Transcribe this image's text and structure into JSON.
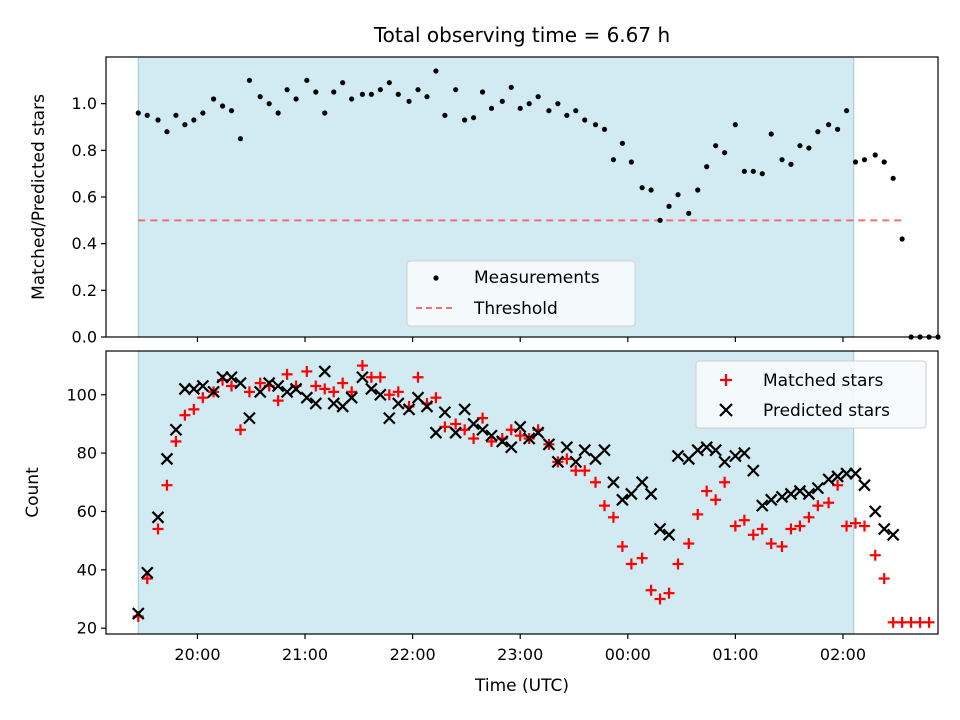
{
  "chart_data": [
    {
      "type": "scatter",
      "title": "Total observing time = 6.67 h",
      "xlabel": "",
      "ylabel": "Matched/Predicted stars",
      "ylim": [
        0,
        1.2
      ],
      "yticks": [
        "0.0",
        "0.2",
        "0.4",
        "0.6",
        "0.8",
        "1.0"
      ],
      "shade_range": [
        "19:27",
        "02:06"
      ],
      "legend_position": "lower-center",
      "series": [
        {
          "name": "Measurements",
          "marker": "dot",
          "color": "#000000",
          "points": [
            [
              "19:27",
              0.96
            ],
            [
              "19:32",
              0.95
            ],
            [
              "19:38",
              0.93
            ],
            [
              "19:43",
              0.88
            ],
            [
              "19:48",
              0.95
            ],
            [
              "19:53",
              0.91
            ],
            [
              "19:58",
              0.93
            ],
            [
              "20:03",
              0.96
            ],
            [
              "20:09",
              1.02
            ],
            [
              "20:14",
              0.99
            ],
            [
              "20:19",
              0.97
            ],
            [
              "20:24",
              0.85
            ],
            [
              "20:29",
              1.1
            ],
            [
              "20:35",
              1.03
            ],
            [
              "20:40",
              1.0
            ],
            [
              "20:45",
              0.96
            ],
            [
              "20:50",
              1.06
            ],
            [
              "20:55",
              1.02
            ],
            [
              "21:01",
              1.1
            ],
            [
              "21:06",
              1.05
            ],
            [
              "21:11",
              0.96
            ],
            [
              "21:16",
              1.05
            ],
            [
              "21:21",
              1.09
            ],
            [
              "21:26",
              1.02
            ],
            [
              "21:32",
              1.04
            ],
            [
              "21:37",
              1.04
            ],
            [
              "21:42",
              1.06
            ],
            [
              "21:47",
              1.09
            ],
            [
              "21:52",
              1.04
            ],
            [
              "21:58",
              1.01
            ],
            [
              "22:03",
              1.06
            ],
            [
              "22:08",
              1.03
            ],
            [
              "22:13",
              1.14
            ],
            [
              "22:18",
              0.95
            ],
            [
              "22:24",
              1.06
            ],
            [
              "22:29",
              0.93
            ],
            [
              "22:34",
              0.94
            ],
            [
              "22:39",
              1.05
            ],
            [
              "22:44",
              0.98
            ],
            [
              "22:50",
              1.01
            ],
            [
              "22:55",
              1.07
            ],
            [
              "23:00",
              0.98
            ],
            [
              "23:05",
              1.0
            ],
            [
              "23:10",
              1.03
            ],
            [
              "23:16",
              0.97
            ],
            [
              "23:21",
              1.0
            ],
            [
              "23:26",
              0.95
            ],
            [
              "23:31",
              0.97
            ],
            [
              "23:36",
              0.93
            ],
            [
              "23:42",
              0.91
            ],
            [
              "23:47",
              0.89
            ],
            [
              "23:52",
              0.76
            ],
            [
              "23:57",
              0.83
            ],
            [
              "00:02",
              0.75
            ],
            [
              "00:08",
              0.64
            ],
            [
              "00:13",
              0.63
            ],
            [
              "00:18",
              0.5
            ],
            [
              "00:23",
              0.56
            ],
            [
              "00:28",
              0.61
            ],
            [
              "00:34",
              0.53
            ],
            [
              "00:39",
              0.63
            ],
            [
              "00:44",
              0.73
            ],
            [
              "00:49",
              0.82
            ],
            [
              "00:54",
              0.79
            ],
            [
              "01:00",
              0.91
            ],
            [
              "01:05",
              0.71
            ],
            [
              "01:10",
              0.71
            ],
            [
              "01:15",
              0.7
            ],
            [
              "01:20",
              0.87
            ],
            [
              "01:26",
              0.76
            ],
            [
              "01:31",
              0.74
            ],
            [
              "01:36",
              0.82
            ],
            [
              "01:41",
              0.81
            ],
            [
              "01:46",
              0.88
            ],
            [
              "01:52",
              0.91
            ],
            [
              "01:57",
              0.89
            ],
            [
              "02:02",
              0.97
            ],
            [
              "02:07",
              0.75
            ],
            [
              "02:12",
              0.76
            ],
            [
              "02:18",
              0.78
            ],
            [
              "02:23",
              0.75
            ],
            [
              "02:28",
              0.68
            ],
            [
              "02:33",
              0.42
            ],
            [
              "02:38",
              0.0
            ],
            [
              "02:43",
              0.0
            ],
            [
              "02:48",
              0.0
            ],
            [
              "02:53",
              0.0
            ]
          ]
        },
        {
          "name": "Threshold",
          "marker": "dashed-line",
          "color": "#f07070",
          "value": 0.5,
          "range": [
            "19:27",
            "02:33"
          ]
        }
      ]
    },
    {
      "type": "scatter",
      "title": "",
      "xlabel": "Time (UTC)",
      "ylabel": "Count",
      "ylim": [
        18,
        115
      ],
      "yticks": [
        "20",
        "40",
        "60",
        "80",
        "100"
      ],
      "xlim": [
        "19:09",
        "02:53"
      ],
      "xticks": [
        "20:00",
        "21:00",
        "22:00",
        "23:00",
        "00:00",
        "01:00",
        "02:00"
      ],
      "shade_range": [
        "19:27",
        "02:06"
      ],
      "legend_position": "top-right",
      "series": [
        {
          "name": "Matched stars",
          "marker": "plus",
          "color": "#ff0000",
          "points": [
            [
              "19:27",
              24
            ],
            [
              "19:32",
              37
            ],
            [
              "19:38",
              54
            ],
            [
              "19:43",
              69
            ],
            [
              "19:48",
              84
            ],
            [
              "19:53",
              93
            ],
            [
              "19:58",
              95
            ],
            [
              "20:03",
              99
            ],
            [
              "20:09",
              101
            ],
            [
              "20:14",
              105
            ],
            [
              "20:19",
              103
            ],
            [
              "20:24",
              88
            ],
            [
              "20:29",
              101
            ],
            [
              "20:35",
              104
            ],
            [
              "20:40",
              103
            ],
            [
              "20:45",
              98
            ],
            [
              "20:50",
              107
            ],
            [
              "20:55",
              103
            ],
            [
              "21:01",
              108
            ],
            [
              "21:06",
              103
            ],
            [
              "21:11",
              102
            ],
            [
              "21:16",
              101
            ],
            [
              "21:21",
              104
            ],
            [
              "21:26",
              101
            ],
            [
              "21:32",
              110
            ],
            [
              "21:37",
              106
            ],
            [
              "21:42",
              106
            ],
            [
              "21:47",
              100
            ],
            [
              "21:52",
              101
            ],
            [
              "21:58",
              96
            ],
            [
              "22:03",
              106
            ],
            [
              "22:08",
              97
            ],
            [
              "22:13",
              99
            ],
            [
              "22:18",
              89
            ],
            [
              "22:24",
              90
            ],
            [
              "22:29",
              88
            ],
            [
              "22:34",
              85
            ],
            [
              "22:39",
              92
            ],
            [
              "22:44",
              84
            ],
            [
              "22:50",
              85
            ],
            [
              "22:55",
              88
            ],
            [
              "23:00",
              86
            ],
            [
              "23:05",
              85
            ],
            [
              "23:10",
              88
            ],
            [
              "23:16",
              83
            ],
            [
              "23:21",
              77
            ],
            [
              "23:26",
              78
            ],
            [
              "23:31",
              74
            ],
            [
              "23:36",
              74
            ],
            [
              "23:42",
              70
            ],
            [
              "23:47",
              62
            ],
            [
              "23:52",
              58
            ],
            [
              "23:57",
              48
            ],
            [
              "00:02",
              42
            ],
            [
              "00:08",
              44
            ],
            [
              "00:13",
              33
            ],
            [
              "00:18",
              30
            ],
            [
              "00:23",
              32
            ],
            [
              "00:28",
              42
            ],
            [
              "00:34",
              49
            ],
            [
              "00:39",
              59
            ],
            [
              "00:44",
              67
            ],
            [
              "00:49",
              64
            ],
            [
              "00:54",
              70
            ],
            [
              "01:00",
              55
            ],
            [
              "01:05",
              57
            ],
            [
              "01:10",
              52
            ],
            [
              "01:15",
              54
            ],
            [
              "01:20",
              49
            ],
            [
              "01:26",
              48
            ],
            [
              "01:31",
              54
            ],
            [
              "01:36",
              55
            ],
            [
              "01:41",
              58
            ],
            [
              "01:46",
              62
            ],
            [
              "01:52",
              63
            ],
            [
              "01:57",
              69
            ],
            [
              "02:02",
              55
            ],
            [
              "02:07",
              56
            ],
            [
              "02:12",
              55
            ],
            [
              "02:18",
              45
            ],
            [
              "02:23",
              37
            ],
            [
              "02:28",
              22
            ],
            [
              "02:33",
              22
            ],
            [
              "02:38",
              22
            ],
            [
              "02:43",
              22
            ],
            [
              "02:48",
              22
            ]
          ]
        },
        {
          "name": "Predicted stars",
          "marker": "x",
          "color": "#000000",
          "points": [
            [
              "19:27",
              25
            ],
            [
              "19:32",
              39
            ],
            [
              "19:38",
              58
            ],
            [
              "19:43",
              78
            ],
            [
              "19:48",
              88
            ],
            [
              "19:53",
              102
            ],
            [
              "19:58",
              102
            ],
            [
              "20:03",
              103
            ],
            [
              "20:09",
              101
            ],
            [
              "20:14",
              106
            ],
            [
              "20:19",
              106
            ],
            [
              "20:24",
              104
            ],
            [
              "20:29",
              92
            ],
            [
              "20:35",
              101
            ],
            [
              "20:40",
              104
            ],
            [
              "20:45",
              103
            ],
            [
              "20:50",
              101
            ],
            [
              "20:55",
              102
            ],
            [
              "21:01",
              99
            ],
            [
              "21:06",
              97
            ],
            [
              "21:11",
              108
            ],
            [
              "21:16",
              97
            ],
            [
              "21:21",
              96
            ],
            [
              "21:26",
              99
            ],
            [
              "21:32",
              106
            ],
            [
              "21:37",
              102
            ],
            [
              "21:42",
              100
            ],
            [
              "21:47",
              92
            ],
            [
              "21:52",
              97
            ],
            [
              "21:58",
              95
            ],
            [
              "22:03",
              99
            ],
            [
              "22:08",
              96
            ],
            [
              "22:13",
              87
            ],
            [
              "22:18",
              94
            ],
            [
              "22:24",
              87
            ],
            [
              "22:29",
              95
            ],
            [
              "22:34",
              90
            ],
            [
              "22:39",
              88
            ],
            [
              "22:44",
              86
            ],
            [
              "22:50",
              84
            ],
            [
              "22:55",
              82
            ],
            [
              "23:00",
              89
            ],
            [
              "23:05",
              85
            ],
            [
              "23:10",
              87
            ],
            [
              "23:16",
              83
            ],
            [
              "23:21",
              77
            ],
            [
              "23:26",
              82
            ],
            [
              "23:31",
              77
            ],
            [
              "23:36",
              81
            ],
            [
              "23:42",
              78
            ],
            [
              "23:47",
              81
            ],
            [
              "23:52",
              70
            ],
            [
              "23:57",
              64
            ],
            [
              "00:02",
              66
            ],
            [
              "00:08",
              70
            ],
            [
              "00:13",
              66
            ],
            [
              "00:18",
              54
            ],
            [
              "00:23",
              52
            ],
            [
              "00:28",
              79
            ],
            [
              "00:34",
              78
            ],
            [
              "00:39",
              81
            ],
            [
              "00:44",
              82
            ],
            [
              "00:49",
              81
            ],
            [
              "00:54",
              77
            ],
            [
              "01:00",
              79
            ],
            [
              "01:05",
              80
            ],
            [
              "01:10",
              74
            ],
            [
              "01:15",
              62
            ],
            [
              "01:20",
              64
            ],
            [
              "01:26",
              65
            ],
            [
              "01:31",
              66
            ],
            [
              "01:36",
              67
            ],
            [
              "01:41",
              66
            ],
            [
              "01:46",
              68
            ],
            [
              "01:52",
              71
            ],
            [
              "01:57",
              72
            ],
            [
              "02:02",
              73
            ],
            [
              "02:07",
              73
            ],
            [
              "02:12",
              69
            ],
            [
              "02:18",
              60
            ],
            [
              "02:23",
              54
            ],
            [
              "02:28",
              52
            ]
          ]
        }
      ]
    }
  ]
}
